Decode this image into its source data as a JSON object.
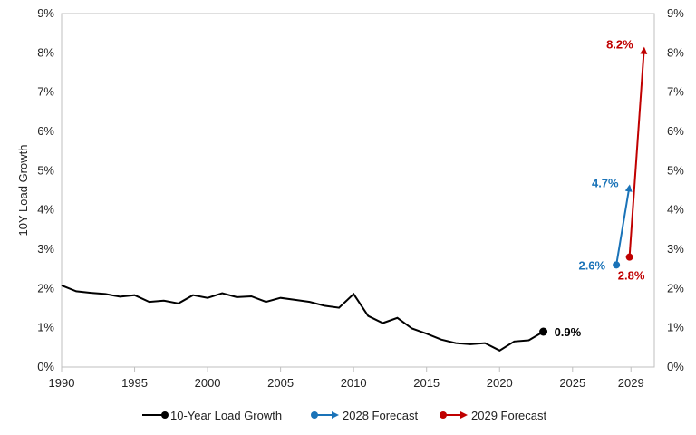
{
  "chart_data": {
    "type": "line",
    "title": "",
    "ylabel": "10Y Load Growth",
    "xlabel": "",
    "xlim": [
      1990,
      2029
    ],
    "ylim": [
      0,
      9
    ],
    "x_ticks": [
      "1990",
      "1995",
      "2000",
      "2005",
      "2010",
      "2015",
      "2020",
      "2025",
      "2029"
    ],
    "y_ticks": [
      "0%",
      "1%",
      "2%",
      "3%",
      "4%",
      "5%",
      "6%",
      "7%",
      "8%",
      "9%"
    ],
    "y_ticks_right": [
      "0%",
      "1%",
      "2%",
      "3%",
      "4%",
      "5%",
      "6%",
      "7%",
      "8%",
      "9%"
    ],
    "grid": false,
    "legend_position": "bottom",
    "series": [
      {
        "name": "10-Year Load Growth",
        "color": "#000000",
        "x": [
          1990,
          1991,
          1992,
          1993,
          1994,
          1995,
          1996,
          1997,
          1998,
          1999,
          2000,
          2001,
          2002,
          2003,
          2004,
          2005,
          2006,
          2007,
          2008,
          2009,
          2010,
          2011,
          2012,
          2013,
          2014,
          2015,
          2016,
          2017,
          2018,
          2019,
          2020,
          2021,
          2022,
          2023
        ],
        "y": [
          2.08,
          1.93,
          1.89,
          1.86,
          1.79,
          1.83,
          1.66,
          1.69,
          1.62,
          1.83,
          1.76,
          1.88,
          1.78,
          1.8,
          1.66,
          1.76,
          1.71,
          1.66,
          1.56,
          1.51,
          1.86,
          1.3,
          1.12,
          1.25,
          0.98,
          0.85,
          0.7,
          0.61,
          0.58,
          0.61,
          0.42,
          0.65,
          0.68,
          0.9
        ],
        "end_label": "0.9%"
      },
      {
        "name": "2028 Forecast",
        "color": "#1a73b8",
        "x": [
          2028,
          2028.9
        ],
        "y": [
          2.6,
          4.7
        ],
        "start_label": "2.6%",
        "end_label": "4.7%"
      },
      {
        "name": "2029 Forecast",
        "color": "#c00000",
        "x": [
          2028.9,
          2029.9
        ],
        "y": [
          2.8,
          8.2
        ],
        "start_label": "2.8%",
        "end_label": "8.2%"
      }
    ]
  }
}
